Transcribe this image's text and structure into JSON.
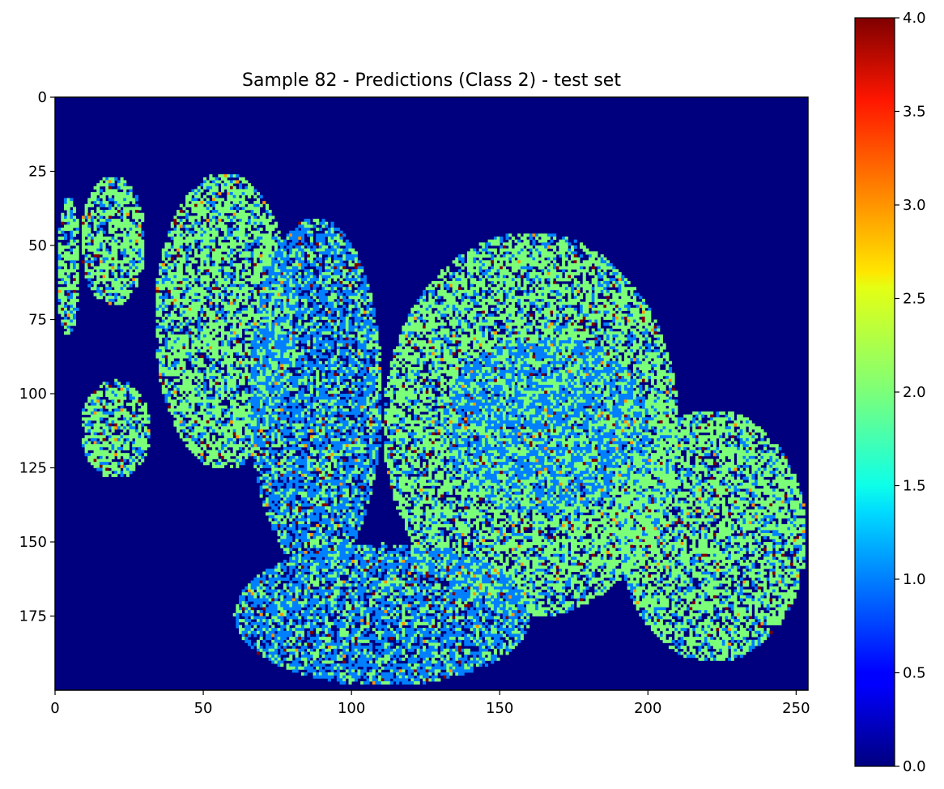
{
  "chart_data": {
    "type": "heatmap",
    "title": "Sample 82 - Predictions (Class 2) - test set",
    "xlabel": "",
    "ylabel": "",
    "x_range": [
      0,
      254
    ],
    "y_range": [
      0,
      200
    ],
    "x_ticks": [
      0,
      50,
      100,
      150,
      200,
      250
    ],
    "y_ticks": [
      0,
      25,
      50,
      75,
      100,
      125,
      150,
      175
    ],
    "colormap": "jet",
    "vmin": 0.0,
    "vmax": 4.0,
    "colorbar_ticks": [
      "0.0",
      "0.5",
      "1.0",
      "1.5",
      "2.0",
      "2.5",
      "3.0",
      "3.5",
      "4.0"
    ],
    "colorbar_values": [
      0,
      0.5,
      1.0,
      1.5,
      2.0,
      2.5,
      3.0,
      3.5,
      4.0
    ],
    "background_value": 0,
    "classes_present": [
      0,
      1,
      2,
      3,
      4
    ],
    "dominant_regions": [
      {
        "value": 2,
        "x": [
          0,
          8
        ],
        "y": [
          33,
          80
        ]
      },
      {
        "value": 2,
        "x": [
          8,
          30
        ],
        "y": [
          26,
          70
        ]
      },
      {
        "value": 2,
        "x": [
          33,
          80
        ],
        "y": [
          25,
          125
        ]
      },
      {
        "value": 2,
        "x": [
          8,
          32
        ],
        "y": [
          95,
          128
        ]
      },
      {
        "value": 1,
        "x": [
          65,
          110
        ],
        "y": [
          40,
          160
        ]
      },
      {
        "value": 2,
        "x": [
          110,
          210
        ],
        "y": [
          45,
          175
        ]
      },
      {
        "value": 1,
        "x": [
          130,
          200
        ],
        "y": [
          80,
          140
        ]
      },
      {
        "value": 2,
        "x": [
          190,
          253
        ],
        "y": [
          105,
          190
        ]
      },
      {
        "value": 1,
        "x": [
          60,
          160
        ],
        "y": [
          150,
          198
        ]
      }
    ],
    "colors": {
      "background": "#00007f",
      "class1": "#0080ff",
      "class2": "#7cff79",
      "class3": "#ff9400",
      "class4": "#7f0000"
    }
  }
}
